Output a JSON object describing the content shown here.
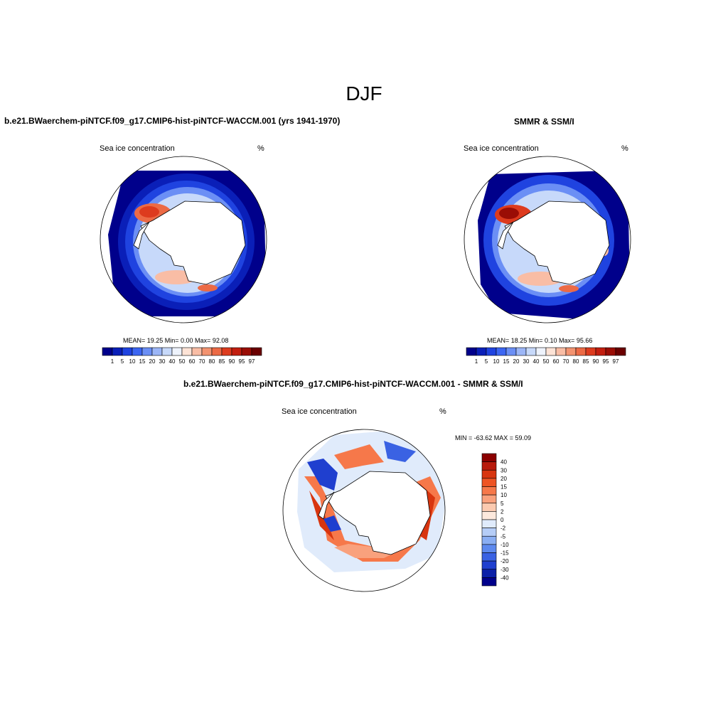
{
  "title": "DJF",
  "panels": {
    "model": {
      "title": "b.e21.BWaerchem-piNTCF.f09_g17.CMIP6-hist-piNTCF-WACCM.001 (yrs 1941-1970)",
      "left_label": "Sea ice concentration",
      "right_label": "%",
      "stats": "MEAN=  19.25  Min=   0.00  Max=  92.08"
    },
    "obs": {
      "title": "SMMR & SSM/I",
      "left_label": "Sea ice concentration",
      "right_label": "%",
      "stats": "MEAN=  18.25  Min=   0.10  Max=  95.66"
    },
    "diff": {
      "title": "b.e21.BWaerchem-piNTCF.f09_g17.CMIP6-hist-piNTCF-WACCM.001 - SMMR & SSM/I",
      "left_label": "Sea ice concentration",
      "right_label": "%",
      "minmax": "MIN = -63.62 MAX =  59.09"
    }
  },
  "colorbar_conc": {
    "labels": [
      "1",
      "5",
      "10",
      "15",
      "20",
      "30",
      "40",
      "50",
      "60",
      "70",
      "80",
      "85",
      "90",
      "95",
      "97"
    ],
    "colors": [
      "#00008b",
      "#0a1fb8",
      "#1f43e0",
      "#3c66f2",
      "#6b8ff5",
      "#9cb6f7",
      "#c7d9fa",
      "#eef3fc",
      "#fde3d6",
      "#f9bda5",
      "#f39370",
      "#ec6a45",
      "#dd3b1e",
      "#c21e0f",
      "#9a0d05",
      "#6b0000"
    ]
  },
  "colorbar_diff": {
    "labels": [
      "40",
      "30",
      "20",
      "15",
      "10",
      "5",
      "2",
      "0",
      "-2",
      "-5",
      "-10",
      "-15",
      "-20",
      "-30",
      "-40"
    ],
    "colors": [
      "#8b0000",
      "#b81a0c",
      "#d8350f",
      "#ee5424",
      "#f6784a",
      "#f9a17d",
      "#fbcab0",
      "#fde9dd",
      "#e0ebfb",
      "#b5cdf7",
      "#8aaef3",
      "#5d89ee",
      "#3a62e3",
      "#1f3fcf",
      "#0b20a8",
      "#00008b"
    ]
  }
}
